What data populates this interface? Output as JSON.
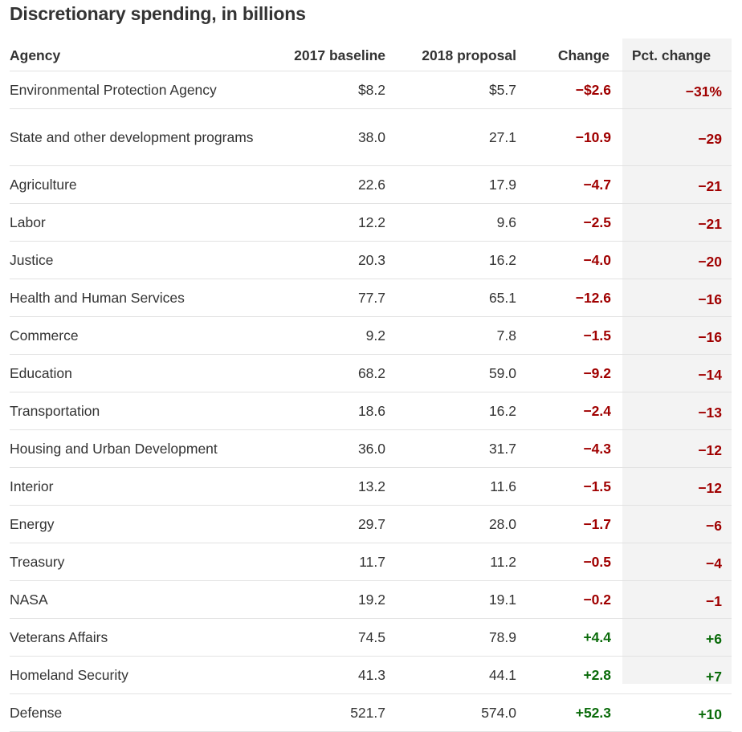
{
  "title": "Discretionary spending, in billions",
  "colors": {
    "negative": "#a00000",
    "positive": "#0a6b0a",
    "highlight_column_bg": "#f3f3f3"
  },
  "table": {
    "headers": [
      "Agency",
      "2017 baseline",
      "2018 proposal",
      "Change",
      "Pct. change"
    ],
    "rows": [
      {
        "agency": "Environmental Protection Agency",
        "baseline": "$8.2",
        "proposal": "$5.7",
        "change": "−$2.6",
        "pct": "−31%",
        "sign": "neg"
      },
      {
        "agency": "State and other development programs",
        "baseline": "38.0",
        "proposal": "27.1",
        "change": "−10.9",
        "pct": "−29",
        "sign": "neg"
      },
      {
        "agency": "Agriculture",
        "baseline": "22.6",
        "proposal": "17.9",
        "change": "−4.7",
        "pct": "−21",
        "sign": "neg"
      },
      {
        "agency": "Labor",
        "baseline": "12.2",
        "proposal": "9.6",
        "change": "−2.5",
        "pct": "−21",
        "sign": "neg"
      },
      {
        "agency": "Justice",
        "baseline": "20.3",
        "proposal": "16.2",
        "change": "−4.0",
        "pct": "−20",
        "sign": "neg"
      },
      {
        "agency": "Health and Human Services",
        "baseline": "77.7",
        "proposal": "65.1",
        "change": "−12.6",
        "pct": "−16",
        "sign": "neg"
      },
      {
        "agency": "Commerce",
        "baseline": "9.2",
        "proposal": "7.8",
        "change": "−1.5",
        "pct": "−16",
        "sign": "neg"
      },
      {
        "agency": "Education",
        "baseline": "68.2",
        "proposal": "59.0",
        "change": "−9.2",
        "pct": "−14",
        "sign": "neg"
      },
      {
        "agency": "Transportation",
        "baseline": "18.6",
        "proposal": "16.2",
        "change": "−2.4",
        "pct": "−13",
        "sign": "neg"
      },
      {
        "agency": "Housing and Urban Development",
        "baseline": "36.0",
        "proposal": "31.7",
        "change": "−4.3",
        "pct": "−12",
        "sign": "neg"
      },
      {
        "agency": "Interior",
        "baseline": "13.2",
        "proposal": "11.6",
        "change": "−1.5",
        "pct": "−12",
        "sign": "neg"
      },
      {
        "agency": "Energy",
        "baseline": "29.7",
        "proposal": "28.0",
        "change": "−1.7",
        "pct": "−6",
        "sign": "neg"
      },
      {
        "agency": "Treasury",
        "baseline": "11.7",
        "proposal": "11.2",
        "change": "−0.5",
        "pct": "−4",
        "sign": "neg"
      },
      {
        "agency": "NASA",
        "baseline": "19.2",
        "proposal": "19.1",
        "change": "−0.2",
        "pct": "−1",
        "sign": "neg"
      },
      {
        "agency": "Veterans Affairs",
        "baseline": "74.5",
        "proposal": "78.9",
        "change": "+4.4",
        "pct": "+6",
        "sign": "pos"
      },
      {
        "agency": "Homeland Security",
        "baseline": "41.3",
        "proposal": "44.1",
        "change": "+2.8",
        "pct": "+7",
        "sign": "pos"
      },
      {
        "agency": "Defense",
        "baseline": "521.7",
        "proposal": "574.0",
        "change": "+52.3",
        "pct": "+10",
        "sign": "pos"
      }
    ]
  }
}
